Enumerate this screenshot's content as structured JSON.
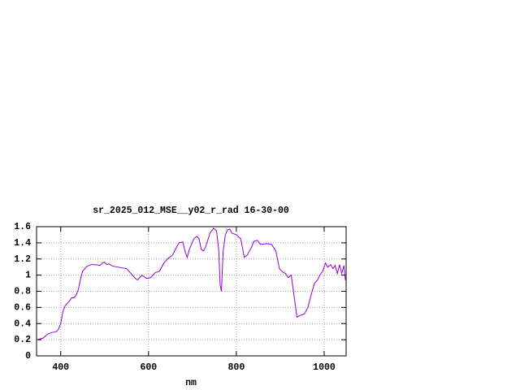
{
  "chart_data": {
    "type": "line",
    "title": "sr_2025_012_MSE__y02_r_rad 16-30-00",
    "x_label": "nm",
    "x": [
      345,
      360,
      370,
      380,
      390,
      395,
      400,
      405,
      410,
      420,
      425,
      430,
      435,
      440,
      445,
      450,
      460,
      470,
      480,
      490,
      495,
      500,
      505,
      510,
      515,
      520,
      530,
      540,
      550,
      560,
      570,
      575,
      585,
      595,
      605,
      615,
      625,
      635,
      645,
      655,
      665,
      670,
      678,
      683,
      688,
      693,
      703,
      710,
      715,
      720,
      725,
      730,
      740,
      748,
      755,
      760,
      763,
      766,
      770,
      775,
      780,
      785,
      790,
      800,
      810,
      818,
      825,
      835,
      840,
      848,
      855,
      870,
      880,
      890,
      898,
      905,
      912,
      918,
      925,
      930,
      938,
      945,
      955,
      963,
      970,
      978,
      985,
      990,
      997,
      1003,
      1008,
      1015,
      1020,
      1025,
      1030,
      1035,
      1040,
      1045,
      1048,
      1050
    ],
    "series": [
      {
        "name": "sr_2025_012_MSE__y02_r_rad 16-30-00",
        "color": "#9400d3",
        "values": [
          0.2,
          0.22,
          0.27,
          0.29,
          0.3,
          0.33,
          0.4,
          0.55,
          0.62,
          0.68,
          0.72,
          0.72,
          0.75,
          0.82,
          0.95,
          1.05,
          1.11,
          1.13,
          1.13,
          1.12,
          1.15,
          1.16,
          1.13,
          1.14,
          1.12,
          1.11,
          1.1,
          1.09,
          1.08,
          1.02,
          0.96,
          0.94,
          1.0,
          0.96,
          0.97,
          1.03,
          1.05,
          1.15,
          1.21,
          1.25,
          1.36,
          1.4,
          1.41,
          1.3,
          1.22,
          1.32,
          1.45,
          1.48,
          1.45,
          1.32,
          1.3,
          1.35,
          1.52,
          1.58,
          1.55,
          1.3,
          0.88,
          0.8,
          1.3,
          1.5,
          1.56,
          1.57,
          1.52,
          1.5,
          1.45,
          1.22,
          1.25,
          1.35,
          1.42,
          1.43,
          1.38,
          1.39,
          1.38,
          1.3,
          1.08,
          1.04,
          1.02,
          0.97,
          1.0,
          0.8,
          0.48,
          0.5,
          0.52,
          0.6,
          0.75,
          0.9,
          0.94,
          1.0,
          1.05,
          1.15,
          1.1,
          1.13,
          1.08,
          1.12,
          1.02,
          1.13,
          1.02,
          1.12,
          0.95,
          0.92
        ]
      }
    ],
    "xlim": [
      345,
      1050
    ],
    "xticks": [
      400,
      600,
      800,
      1000
    ],
    "ylim": [
      0,
      1.6
    ],
    "yticks": [
      0,
      0.2,
      0.4,
      0.6,
      0.8,
      1,
      1.2,
      1.4,
      1.6
    ],
    "grid": true
  }
}
